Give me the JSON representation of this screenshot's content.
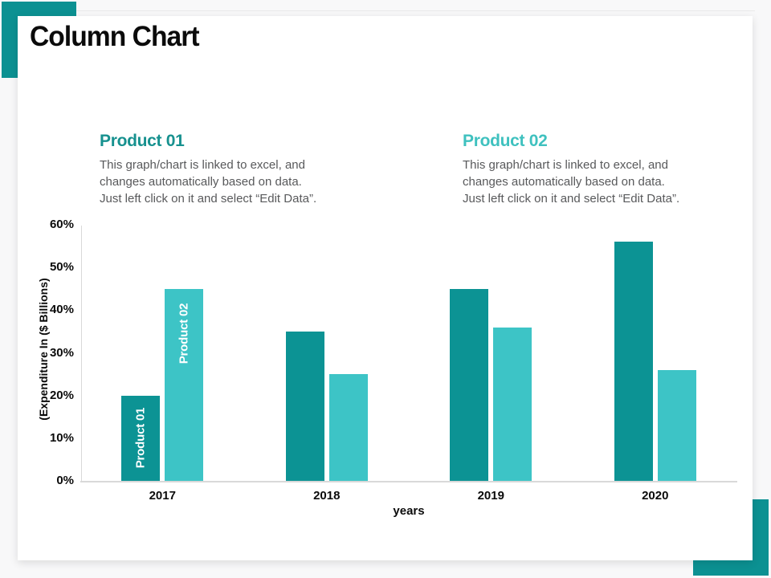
{
  "slide": {
    "title": "Column Chart",
    "accent_color": "#0c9192",
    "background_color": "#f8f8f9",
    "card_color": "#ffffff"
  },
  "products": [
    {
      "heading": "Product 01",
      "heading_color": "#17918f",
      "body": "This graph/chart is linked to excel,  and\nchanges automatically based on data.\nJust left click on it and select “Edit Data”."
    },
    {
      "heading": "Product 02",
      "heading_color": "#3fc1bf",
      "body": "This graph/chart is linked to excel,  and\nchanges automatically based on data.\nJust left click on it and select “Edit Data”."
    }
  ],
  "chart_data": {
    "type": "bar",
    "title": "",
    "categories": [
      "2017",
      "2018",
      "2019",
      "2020"
    ],
    "series": [
      {
        "name": "Product 01",
        "color": "#0c9394",
        "values": [
          20,
          35,
          45,
          56
        ]
      },
      {
        "name": "Product 02",
        "color": "#3dc4c6",
        "values": [
          45,
          25,
          36,
          26
        ]
      }
    ],
    "xlabel": "years",
    "ylabel": "(Expenditure In ($ Billions)",
    "ylim": [
      0,
      60
    ],
    "yticks": [
      {
        "label": "60%",
        "value": 60
      },
      {
        "label": "50%",
        "value": 50
      },
      {
        "label": "40%",
        "value": 40
      },
      {
        "label": "30%",
        "value": 30
      },
      {
        "label": "20%",
        "value": 20
      },
      {
        "label": "10%",
        "value": 10
      },
      {
        "label": "0%",
        "value": 0
      }
    ],
    "grid": false,
    "legend_position": "rotated labels inside first category bars",
    "bar_label_category_index": 0
  }
}
